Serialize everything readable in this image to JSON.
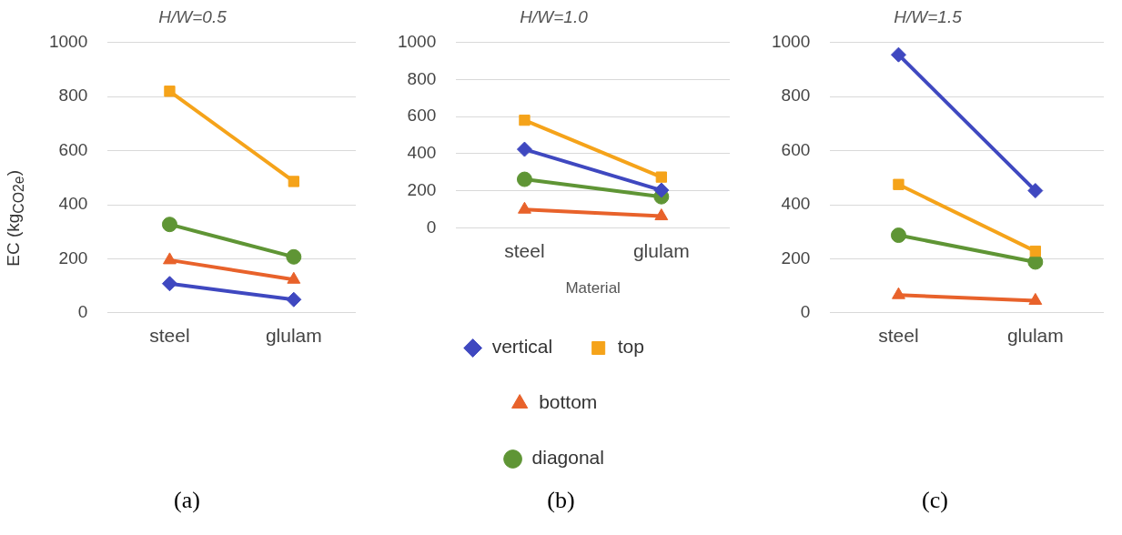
{
  "chart_data": [
    {
      "type": "line",
      "title": "H/W=0.5",
      "ylabel": "EC (kg$_{CO2e}$)",
      "categories": [
        "steel",
        "glulam"
      ],
      "ylim": [
        0,
        1000
      ],
      "yticks": [
        0,
        200,
        400,
        600,
        800,
        1000
      ],
      "grid": "y",
      "legend": false,
      "annotations": [
        "(a)"
      ],
      "series": [
        {
          "color": "#3f48c0",
          "marker": "diamond",
          "values": [
            108,
            49
          ]
        },
        {
          "color": "#f5a31a",
          "marker": "square",
          "values": [
            820,
            486
          ]
        },
        {
          "color": "#e8622b",
          "marker": "triangle",
          "values": [
            195,
            123
          ]
        },
        {
          "color": "#5f9535",
          "marker": "circle",
          "values": [
            327,
            207
          ]
        }
      ]
    },
    {
      "type": "line",
      "title": "H/W=1.0",
      "xlabel": "Material",
      "categories": [
        "steel",
        "glulam"
      ],
      "ylim": [
        0,
        1000
      ],
      "yticks": [
        0,
        200,
        400,
        600,
        800,
        1000
      ],
      "grid": "y",
      "legend": "bottom",
      "annotations": [
        "(b)"
      ],
      "series": [
        {
          "name": "vertical",
          "color": "#3f48c0",
          "marker": "diamond",
          "values": [
            424,
            203
          ]
        },
        {
          "name": "top",
          "color": "#f5a31a",
          "marker": "square",
          "values": [
            581,
            274
          ]
        },
        {
          "name": "bottom",
          "color": "#e8622b",
          "marker": "triangle",
          "values": [
            99,
            63
          ]
        },
        {
          "name": "diagonal",
          "color": "#5f9535",
          "marker": "circle",
          "values": [
            262,
            168
          ]
        }
      ]
    },
    {
      "type": "line",
      "title": "H/W=1.5",
      "categories": [
        "steel",
        "glulam"
      ],
      "ylim": [
        0,
        1000
      ],
      "yticks": [
        0,
        200,
        400,
        600,
        800,
        1000
      ],
      "grid": "y",
      "legend": false,
      "annotations": [
        "(c)"
      ],
      "series": [
        {
          "color": "#3f48c0",
          "marker": "diamond",
          "values": [
            955,
            452
          ]
        },
        {
          "color": "#f5a31a",
          "marker": "square",
          "values": [
            475,
            228
          ]
        },
        {
          "color": "#e8622b",
          "marker": "triangle",
          "values": [
            66,
            45
          ]
        },
        {
          "color": "#5f9535",
          "marker": "circle",
          "values": [
            287,
            188
          ]
        }
      ]
    }
  ]
}
